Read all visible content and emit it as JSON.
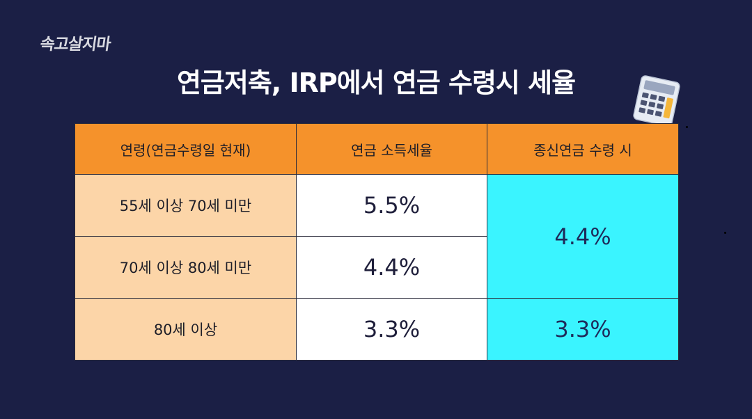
{
  "logo": "속고살지마",
  "title": "연금저축, IRP에서 연금 수령시 세율",
  "icon": "calculator-icon",
  "colors": {
    "background": "#1b1f45",
    "header": "#f5922b",
    "age_column": "#fcd5a8",
    "lifetime_column": "#3af4ff"
  },
  "table": {
    "headers": [
      "연령(연금수령일 현재)",
      "연금 소득세율",
      "종신연금 수령 시"
    ],
    "rows": [
      {
        "age": "55세 이상 70세 미만",
        "rate": "5.5%"
      },
      {
        "age": "70세 이상 80세 미만",
        "rate": "4.4%"
      },
      {
        "age": "80세 이상",
        "rate": "3.3%"
      }
    ],
    "lifetime_rates": [
      "4.4%",
      "3.3%"
    ]
  }
}
